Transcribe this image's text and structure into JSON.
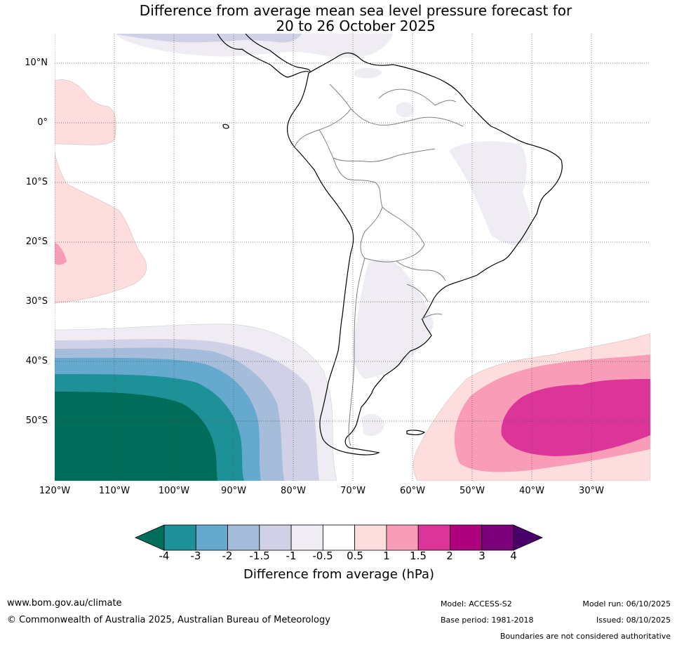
{
  "title": {
    "line1": "Difference from average mean sea level pressure forecast for",
    "line2": "20 to 26 October 2025"
  },
  "map": {
    "lat_labels": [
      "10°N",
      "0°",
      "10°S",
      "20°S",
      "30°S",
      "40°S",
      "50°S"
    ],
    "lon_labels": [
      "120°W",
      "110°W",
      "100°W",
      "90°W",
      "80°W",
      "70°W",
      "60°W",
      "50°W",
      "40°W",
      "30°W"
    ],
    "lon_range": [
      -120,
      -20
    ],
    "lat_range": [
      -60,
      15
    ]
  },
  "colorbar": {
    "title": "Difference from average (hPa)",
    "ticks": [
      "-4",
      "-3",
      "-2",
      "-1.5",
      "-1",
      "-0.5",
      "0.5",
      "1",
      "1.5",
      "2",
      "3",
      "4"
    ],
    "colors": [
      "#006d5b",
      "#1e9198",
      "#66a9ce",
      "#a6bcdb",
      "#d0d1e6",
      "#f0ecf3",
      "#ffffff",
      "#fdddde",
      "#f99cb7",
      "#dc3498",
      "#ad017e",
      "#7a0177",
      "#49006a"
    ]
  },
  "footer": {
    "url": "www.bom.gov.au/climate",
    "copyright": "© Commonwealth of Australia 2025, Australian Bureau of Meteorology",
    "model": "Model: ACCESS-S2",
    "base_period": "Base period: 1981-2018",
    "model_run": "Model run: 06/10/2025",
    "issued": "Issued: 08/10/2025",
    "disclaimer": "Boundaries are not considered authoritative"
  }
}
